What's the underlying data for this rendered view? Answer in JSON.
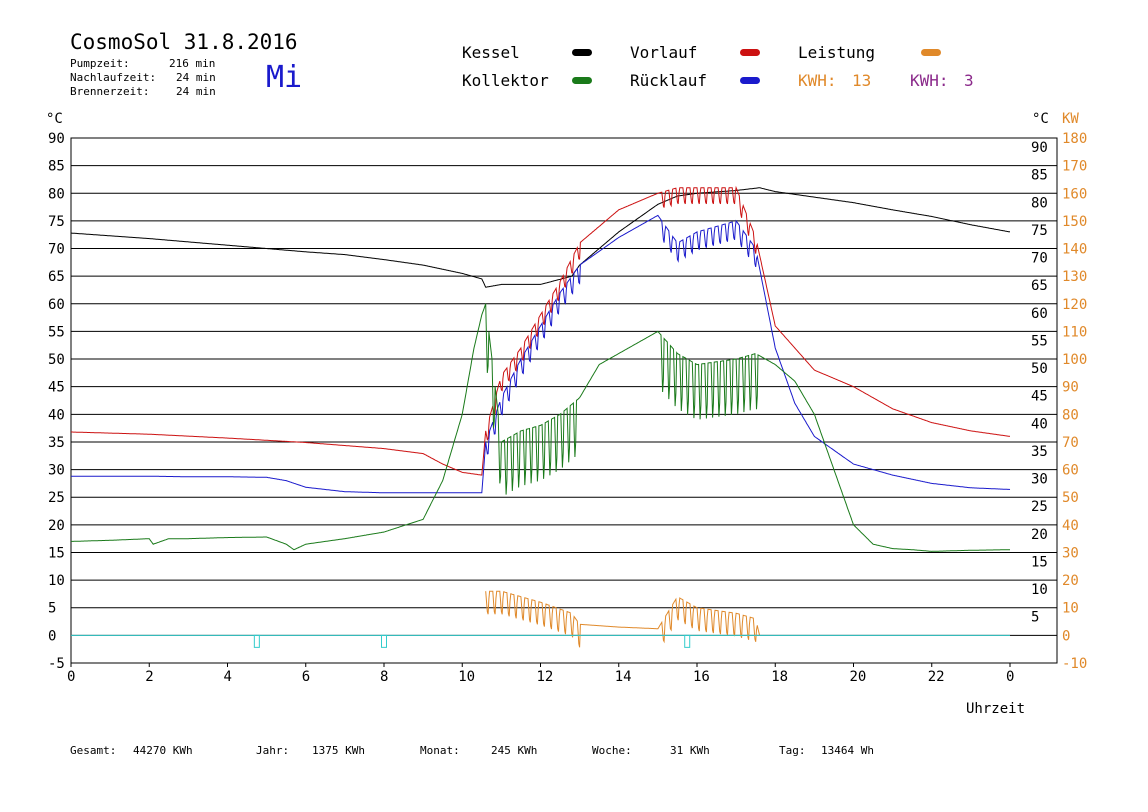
{
  "header": {
    "title": "CosmoSol 31.8.2016",
    "day_of_week": "Mi",
    "pump_label": "Pumpzeit:",
    "pump_value": "216 min",
    "nachlauf_label": "Nachlaufzeit:",
    "nachlauf_value": "24 min",
    "brenner_label": "Brennerzeit:",
    "brenner_value": "24 min"
  },
  "legend": {
    "kessel": "Kessel",
    "kollektor": "Kollektor",
    "vorlauf": "Vorlauf",
    "ruecklauf": "Rücklauf",
    "leistung": "Leistung",
    "kwh1_label": "KWH:",
    "kwh1_value": "13",
    "kwh2_label": "KWH:",
    "kwh2_value": "3"
  },
  "colors": {
    "kessel": "#000000",
    "vorlauf": "#cc1111",
    "ruecklauf": "#1a1acc",
    "kollektor": "#1a7a1a",
    "leistung": "#e0892a",
    "kwh2": "#8b2a8b",
    "pump": "#33cccc"
  },
  "footer": {
    "gesamt_label": "Gesamt:",
    "gesamt_value": "44270 KWh",
    "jahr_label": "Jahr:",
    "jahr_value": "1375 KWh",
    "monat_label": "Monat:",
    "monat_value": "245 KWh",
    "woche_label": "Woche:",
    "woche_value": "31 KWh",
    "tag_label": "Tag:",
    "tag_value": "13464 Wh"
  },
  "chart_data": {
    "type": "line",
    "title": "CosmoSol 31.8.2016",
    "xlabel": "Uhrzeit",
    "ylabel_left": "°C",
    "ylabel_right_1": "°C",
    "ylabel_right_2": "KW",
    "xlim": [
      0,
      24
    ],
    "ylim": [
      -5,
      90
    ],
    "ylim_right_kw": [
      -10,
      180
    ],
    "grid": true,
    "x_ticks": [
      "0",
      "2",
      "4",
      "6",
      "8",
      "10",
      "12",
      "14",
      "16",
      "18",
      "20",
      "22",
      "0"
    ],
    "y_ticks_left": [
      "90",
      "85",
      "80",
      "75",
      "70",
      "65",
      "60",
      "55",
      "50",
      "45",
      "40",
      "35",
      "30",
      "25",
      "20",
      "15",
      "10",
      "5",
      "0",
      "-5"
    ],
    "y_ticks_right": [
      "90",
      "85",
      "80",
      "75",
      "70",
      "65",
      "60",
      "55",
      "50",
      "45",
      "40",
      "35",
      "30",
      "25",
      "20",
      "15",
      "10",
      "5"
    ],
    "y_ticks_kw": [
      "180",
      "170",
      "160",
      "150",
      "140",
      "130",
      "120",
      "110",
      "100",
      "90",
      "80",
      "70",
      "60",
      "50",
      "40",
      "30",
      "20",
      "10",
      "0",
      "-10"
    ],
    "series": [
      {
        "name": "Kessel",
        "x": [
          0,
          1,
          2,
          3,
          4,
          5,
          6,
          7,
          8,
          9,
          10,
          10.5,
          10.6,
          11,
          12,
          12.8,
          13,
          14,
          15,
          15.5,
          16,
          17,
          17.6,
          18,
          19,
          20,
          21,
          22,
          23,
          24
        ],
        "y": [
          72.8,
          72.3,
          71.8,
          71.2,
          70.6,
          70,
          69.4,
          68.9,
          68,
          67,
          65.5,
          64.5,
          63,
          63.5,
          63.5,
          65,
          67,
          73,
          78,
          79.5,
          80,
          80.5,
          81,
          80.3,
          79.3,
          78.3,
          77,
          75.8,
          74.3,
          73
        ]
      },
      {
        "name": "Vorlauf",
        "x": [
          0,
          2,
          4,
          6,
          8,
          9,
          9.5,
          10,
          10.5,
          10.6,
          11,
          11.5,
          12,
          12.5,
          13,
          14,
          15,
          15.5,
          16,
          17,
          17.5,
          18,
          19,
          20,
          21,
          22,
          23,
          24
        ],
        "y": [
          36.8,
          36.4,
          35.7,
          34.9,
          33.8,
          32.9,
          31,
          29.5,
          29,
          37,
          47,
          52,
          58,
          64,
          71,
          77,
          80,
          81,
          81,
          81,
          72,
          56,
          48,
          45,
          41,
          38.5,
          37,
          36
        ]
      },
      {
        "name": "Rücklauf",
        "x": [
          0,
          1,
          2,
          3,
          4,
          5,
          5.5,
          6,
          7,
          8,
          9,
          10,
          10.5,
          10.6,
          11,
          11.5,
          12,
          12.5,
          13,
          14,
          15,
          15.5,
          16,
          17,
          17.5,
          18,
          18.5,
          19,
          20,
          21,
          22,
          23,
          24
        ],
        "y": [
          28.8,
          28.8,
          28.8,
          28.7,
          28.7,
          28.6,
          28,
          26.8,
          26,
          25.8,
          25.8,
          25.8,
          25.8,
          35,
          43,
          50,
          56,
          62,
          67,
          72,
          76,
          71,
          73,
          75,
          70,
          52,
          42,
          36,
          31,
          29,
          27.5,
          26.7,
          26.4
        ]
      },
      {
        "name": "Kollektor",
        "x": [
          0,
          1,
          2,
          2.1,
          2.5,
          3,
          4,
          5,
          5.5,
          5.7,
          6,
          7,
          8,
          9,
          9.5,
          10,
          10.3,
          10.5,
          10.6,
          11,
          11.5,
          12,
          12.5,
          13,
          13.5,
          14,
          14.5,
          15,
          15.5,
          16,
          17,
          17.5,
          18,
          18.5,
          19,
          19.5,
          20,
          20.5,
          21,
          21.5,
          22,
          23,
          24
        ],
        "y": [
          17,
          17.2,
          17.5,
          16.5,
          17.5,
          17.5,
          17.7,
          17.8,
          16.5,
          15.5,
          16.5,
          17.5,
          18.7,
          21,
          28,
          40,
          52,
          58,
          60,
          35,
          37,
          38,
          40,
          43,
          49,
          51,
          53,
          55,
          51,
          49,
          50,
          51,
          49,
          46,
          40,
          30,
          20,
          16.5,
          15.7,
          15.5,
          15.2,
          15.4,
          15.5
        ]
      },
      {
        "name": "Leistung",
        "x": [
          10.6,
          11,
          12,
          12.8,
          13,
          14,
          15,
          15.5,
          16,
          17,
          17.5,
          17.6
        ],
        "y": [
          8,
          8,
          6,
          4,
          2,
          1.5,
          1.2,
          7,
          5,
          4,
          3,
          0
        ]
      },
      {
        "name": "Pumpe",
        "x": [
          0,
          24
        ],
        "y": [
          0,
          0
        ]
      }
    ],
    "pump_off_marks_hours": [
      4.75,
      8,
      15.75
    ]
  }
}
